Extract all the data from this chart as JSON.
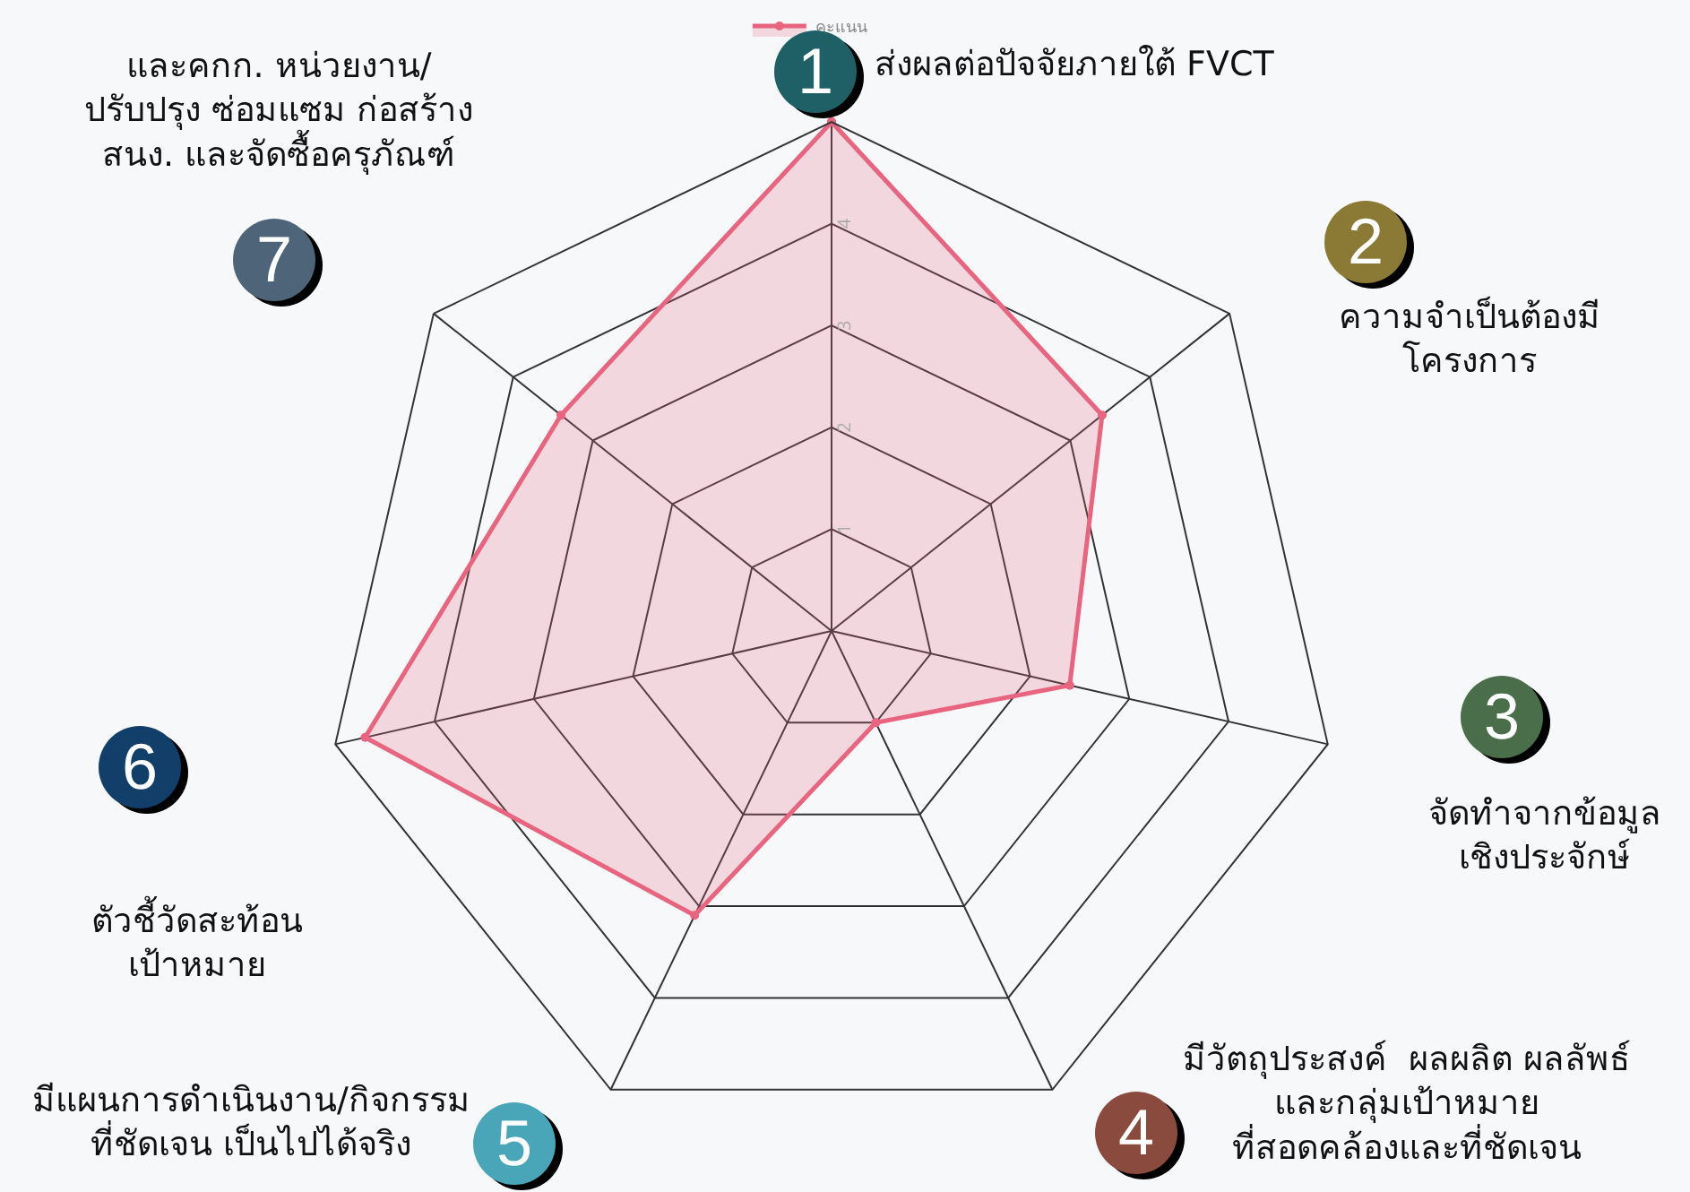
{
  "chart_data": {
    "type": "radar",
    "categories": [
      "ส่งผลต่อปัจจัยภายใต้ FVCT",
      "ความจำเป็นต้องมี\nโครงการ",
      "จัดทำจากข้อมูล\nเชิงประจักษ์",
      "มีวัตถุประสงค์  ผลผลิต ผลลัพธ์\nและกลุ่มเป้าหมาย\nที่สอดคล้องและที่ชัดเจน",
      "มีแผนการดำเนินงาน/กิจกรรม\nที่ชัดเจน เป็นไปได้จริง",
      "ตัวชี้วัดสะท้อน\nเป้าหมาย",
      "และคกก. หน่วยงาน/\nปรับปรุง ซ่อมแซม ก่อสร้าง\nสนง. และจัดซื้อครุภัณฑ์"
    ],
    "series": [
      {
        "name": "คะแนน",
        "color": "#e8647f",
        "values": [
          5,
          3.4,
          2.4,
          1,
          3.1,
          4.7,
          3.4
        ]
      }
    ],
    "annotations": [
      "1",
      "2",
      "3",
      "4",
      "5",
      "6",
      "7"
    ],
    "ylim": [
      0,
      5
    ],
    "yticks": [
      1,
      2,
      3,
      4
    ],
    "legend": "top",
    "marker": "circle",
    "grid": true
  }
}
